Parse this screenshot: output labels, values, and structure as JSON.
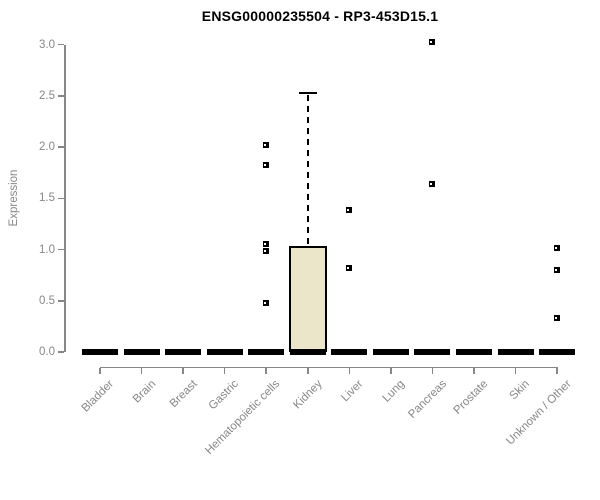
{
  "chart_data": {
    "type": "boxplot",
    "title": "ENSG00000235504 - RP3-453D15.1",
    "ylabel": "Expression",
    "xlabel": "",
    "ylim": [
      0,
      3.05
    ],
    "yticks": [
      0.0,
      0.5,
      1.0,
      1.5,
      2.0,
      2.5,
      3.0
    ],
    "ytick_labels": [
      "0.0",
      "0.5",
      "1.0",
      "1.5",
      "2.0",
      "2.5",
      "3.0"
    ],
    "categories": [
      "Bladder",
      "Brain",
      "Breast",
      "Gastric",
      "Hematopoietic cells",
      "Kidney",
      "Liver",
      "Lung",
      "Pancreas",
      "Prostate",
      "Skin",
      "Unknown / Other"
    ],
    "series": [
      {
        "category": "Bladder",
        "whisker_low": 0,
        "q1": 0,
        "median": 0,
        "q3": 0,
        "whisker_high": 0,
        "outliers": []
      },
      {
        "category": "Brain",
        "whisker_low": 0,
        "q1": 0,
        "median": 0,
        "q3": 0,
        "whisker_high": 0,
        "outliers": []
      },
      {
        "category": "Breast",
        "whisker_low": 0,
        "q1": 0,
        "median": 0,
        "q3": 0,
        "whisker_high": 0,
        "outliers": []
      },
      {
        "category": "Gastric",
        "whisker_low": 0,
        "q1": 0,
        "median": 0,
        "q3": 0,
        "whisker_high": 0,
        "outliers": []
      },
      {
        "category": "Hematopoietic cells",
        "whisker_low": 0,
        "q1": 0,
        "median": 0,
        "q3": 0,
        "whisker_high": 0,
        "outliers": [
          2.02,
          1.83,
          1.05,
          0.99,
          0.48
        ]
      },
      {
        "category": "Kidney",
        "whisker_low": 0,
        "q1": 0,
        "median": 0,
        "q3": 1.03,
        "whisker_high": 2.53,
        "outliers": []
      },
      {
        "category": "Liver",
        "whisker_low": 0,
        "q1": 0,
        "median": 0,
        "q3": 0,
        "whisker_high": 0,
        "outliers": [
          1.39,
          0.82
        ]
      },
      {
        "category": "Lung",
        "whisker_low": 0,
        "q1": 0,
        "median": 0,
        "q3": 0,
        "whisker_high": 0,
        "outliers": []
      },
      {
        "category": "Pancreas",
        "whisker_low": 0,
        "q1": 0,
        "median": 0,
        "q3": 0,
        "whisker_high": 0,
        "outliers": [
          3.03,
          1.64
        ]
      },
      {
        "category": "Prostate",
        "whisker_low": 0,
        "q1": 0,
        "median": 0,
        "q3": 0,
        "whisker_high": 0,
        "outliers": []
      },
      {
        "category": "Skin",
        "whisker_low": 0,
        "q1": 0,
        "median": 0,
        "q3": 0,
        "whisker_high": 0,
        "outliers": []
      },
      {
        "category": "Unknown / Other",
        "whisker_low": 0,
        "q1": 0,
        "median": 0,
        "q3": 0,
        "whisker_high": 0,
        "outliers": [
          1.02,
          0.8,
          0.33
        ]
      }
    ],
    "colors": {
      "box_fill": "#ebe6ca",
      "box_border": "#000000",
      "median": "#000000",
      "outlier": "#000000",
      "axis": "#878787",
      "tick_labels": "#878787",
      "title": "#000000",
      "background": "#ffffff"
    },
    "legend": "none",
    "grid": false
  }
}
